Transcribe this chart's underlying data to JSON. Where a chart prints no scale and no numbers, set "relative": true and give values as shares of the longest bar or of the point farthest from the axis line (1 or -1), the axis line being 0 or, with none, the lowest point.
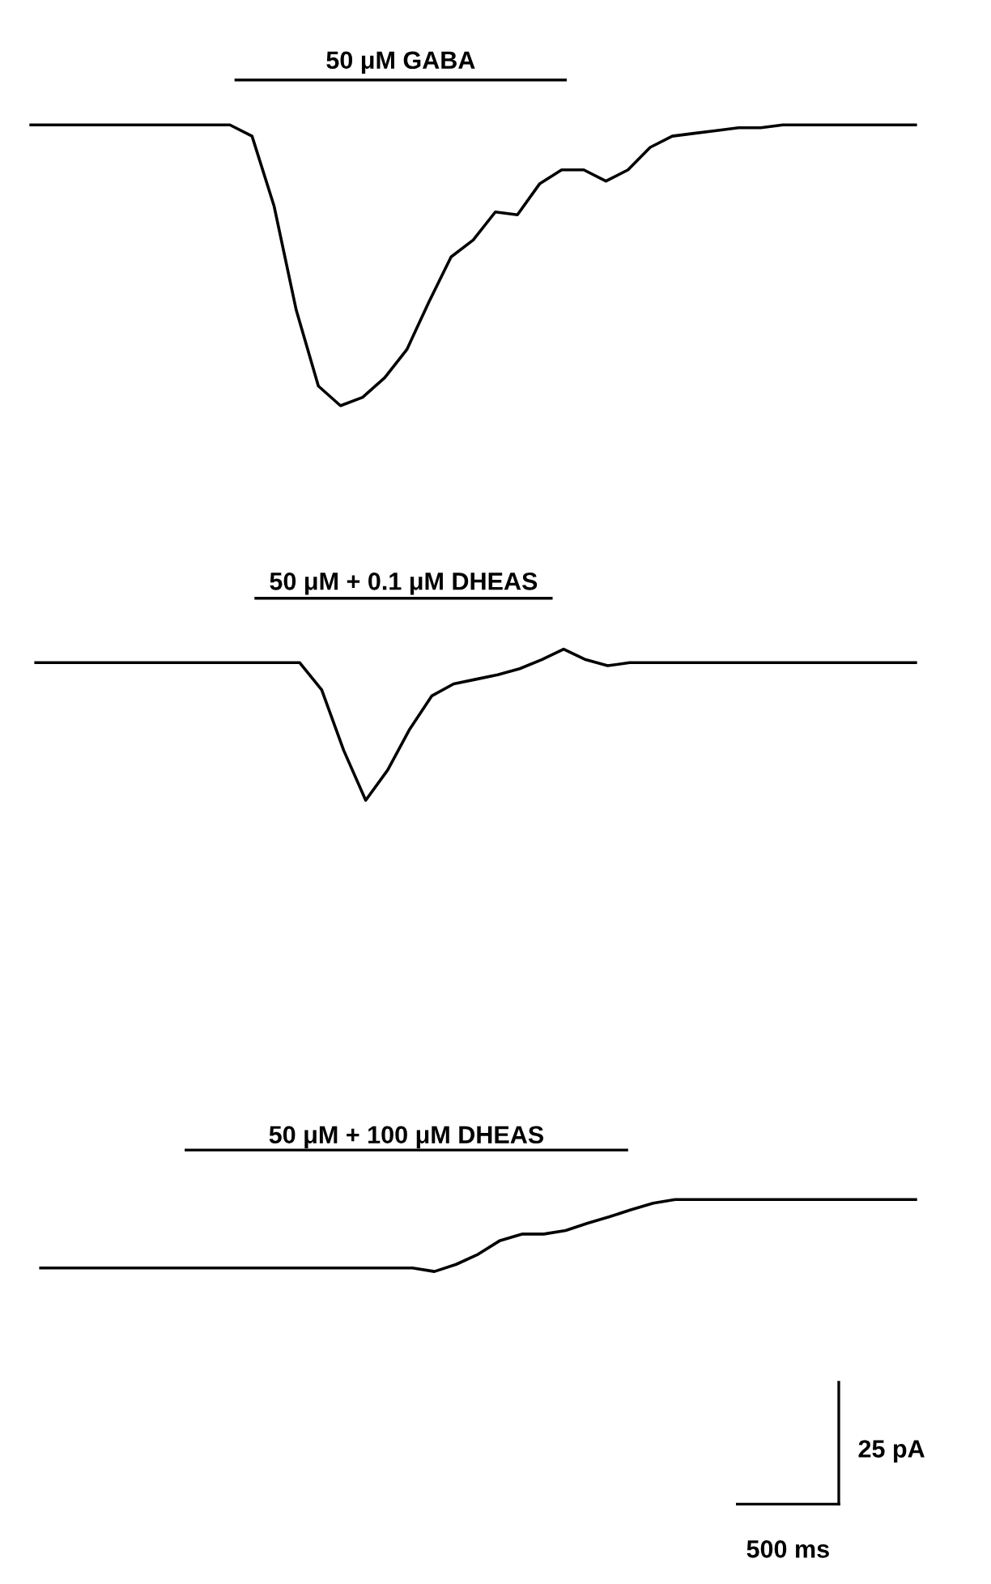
{
  "chart_data": [
    {
      "type": "line",
      "relative": true,
      "title": "50 μM GABA",
      "categories": [
        null,
        null,
        null,
        null,
        null,
        null,
        null,
        null,
        null,
        null,
        null,
        null,
        null,
        null,
        null,
        null,
        null,
        null,
        null,
        null,
        null,
        null,
        null,
        null,
        null,
        null,
        null,
        null,
        null,
        null,
        null,
        null,
        null,
        null,
        null,
        null,
        null,
        null,
        null,
        null,
        null
      ],
      "series": [
        {
          "color": "#000000",
          "values": [
            1,
            1,
            1,
            1,
            1,
            1,
            1,
            1,
            1,
            1,
            0.96,
            0.71,
            0.34,
            0.07,
            0,
            0.03,
            0.1,
            0.2,
            0.37,
            0.53,
            0.59,
            0.69,
            0.68,
            0.79,
            0.84,
            0.84,
            0.8,
            0.84,
            0.92,
            0.96,
            0.97,
            0.98,
            0.99,
            0.99,
            1,
            1,
            1,
            1,
            1,
            1,
            1
          ]
        }
      ]
    },
    {
      "type": "line",
      "relative": true,
      "title": "50 μM + 0.1 μM DHEAS",
      "categories": [
        null,
        null,
        null,
        null,
        null,
        null,
        null,
        null,
        null,
        null,
        null,
        null,
        null,
        null,
        null,
        null,
        null,
        null,
        null,
        null,
        null,
        null,
        null,
        null,
        null,
        null,
        null,
        null,
        null,
        null,
        null,
        null,
        null,
        null,
        null,
        null,
        null,
        null,
        null,
        null,
        null
      ],
      "series": [
        {
          "color": "#000000",
          "values": [
            0.91,
            0.91,
            0.91,
            0.91,
            0.91,
            0.91,
            0.91,
            0.91,
            0.91,
            0.91,
            0.91,
            0.91,
            0.91,
            0.73,
            0.33,
            0,
            0.2,
            0.47,
            0.69,
            0.77,
            0.8,
            0.83,
            0.87,
            0.93,
            1,
            0.93,
            0.89,
            0.91,
            0.91,
            0.91,
            0.91,
            0.91,
            0.91,
            0.91,
            0.91,
            0.91,
            0.91,
            0.91,
            0.91,
            0.91,
            0.91
          ]
        }
      ]
    },
    {
      "type": "line",
      "relative": true,
      "title": "50 μM + 100 μM DHEAS",
      "categories": [
        null,
        null,
        null,
        null,
        null,
        null,
        null,
        null,
        null,
        null,
        null,
        null,
        null,
        null,
        null,
        null,
        null,
        null,
        null,
        null,
        null,
        null,
        null,
        null,
        null,
        null,
        null,
        null,
        null,
        null,
        null,
        null,
        null,
        null,
        null,
        null,
        null,
        null,
        null,
        null,
        null
      ],
      "series": [
        {
          "color": "#000000",
          "values": [
            0.05,
            0.05,
            0.05,
            0.05,
            0.05,
            0.05,
            0.05,
            0.05,
            0.05,
            0.05,
            0.05,
            0.05,
            0.05,
            0.05,
            0.05,
            0.05,
            0.05,
            0.05,
            0,
            0.1,
            0.24,
            0.43,
            0.52,
            0.52,
            0.57,
            0.67,
            0.76,
            0.86,
            0.95,
            1,
            1,
            1,
            1,
            1,
            1,
            1,
            1,
            1,
            1,
            1,
            1
          ]
        }
      ],
      "annotations": [
        "25 pA",
        "500 ms"
      ]
    }
  ]
}
